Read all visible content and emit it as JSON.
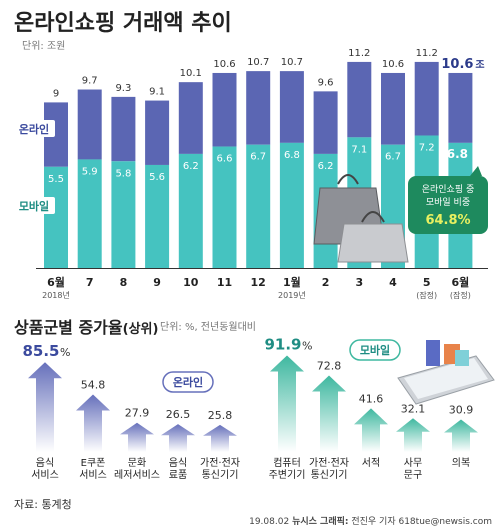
{
  "title": "온라인쇼핑 거래액 추이",
  "unit_top": "단위: 조원",
  "top_chart_data": {
    "type": "bar",
    "stacked": true,
    "months": [
      "6월",
      "7",
      "8",
      "9",
      "10",
      "11",
      "12",
      "1월",
      "2",
      "3",
      "4",
      "5",
      "6월"
    ],
    "year_labels": {
      "0": "2018년",
      "7": "2019년"
    },
    "month_notes": {
      "11": "(잠정)",
      "12": "(잠정)"
    },
    "total_labels": [
      "9",
      "9.7",
      "9.3",
      "9.1",
      "10.1",
      "10.6",
      "10.7",
      "10.7",
      "9.6",
      "11.2",
      "10.6",
      "11.2",
      "10.6"
    ],
    "mobile_labels": [
      "5.5",
      "5.9",
      "5.8",
      "5.6",
      "6.2",
      "6.6",
      "6.7",
      "6.8",
      "6.2",
      "7.1",
      "6.7",
      "7.2",
      "6.8"
    ],
    "totals": [
      9.0,
      9.7,
      9.3,
      9.1,
      10.1,
      10.6,
      10.7,
      10.7,
      9.6,
      11.2,
      10.6,
      11.2,
      10.6
    ],
    "mobile": [
      5.5,
      5.9,
      5.8,
      5.6,
      6.2,
      6.6,
      6.7,
      6.8,
      6.2,
      7.1,
      6.7,
      7.2,
      6.8
    ],
    "last_total_unit": "조",
    "last_mobile_unit": "조",
    "series_labels": {
      "online": "온라인",
      "mobile": "모바일"
    },
    "colors": {
      "online": "#5b66b3",
      "mobile": "#45c3c0",
      "tag": "#1e8a5e",
      "highlight": "#e8f060"
    },
    "callout": {
      "line1": "온라인쇼핑 중",
      "line2": "모바일 비중",
      "value": "64.8%"
    }
  },
  "bottom": {
    "title": "상품군별 증가율",
    "title_sub": "(상위)",
    "unit": "단위: %, 전년동월대비",
    "online_tag": "온라인",
    "mobile_tag": "모바일",
    "online": {
      "labels": [
        "85.5",
        "54.8",
        "27.9",
        "26.5",
        "25.8"
      ],
      "values": [
        85.5,
        54.8,
        27.9,
        26.5,
        25.8
      ],
      "categories": [
        [
          "음식",
          "서비스"
        ],
        [
          "E쿠폰",
          "서비스"
        ],
        [
          "문화",
          "레저서비스"
        ],
        [
          "음식",
          "료품"
        ],
        [
          "가전·전자",
          "통신기기"
        ]
      ],
      "first_unit": "%"
    },
    "mobile": {
      "labels": [
        "91.9",
        "72.8",
        "41.6",
        "32.1",
        "30.9"
      ],
      "values": [
        91.9,
        72.8,
        41.6,
        32.1,
        30.9
      ],
      "categories": [
        [
          "컴퓨터",
          "주변기기"
        ],
        [
          "가전·전자",
          "통신기기"
        ],
        [
          "서적"
        ],
        [
          "사무",
          "문구"
        ],
        [
          "의복"
        ]
      ],
      "first_unit": "%"
    },
    "colors": {
      "online": "#6670bb",
      "mobile": "#3fb8a0"
    }
  },
  "source": "자료: 통계청",
  "credit": {
    "date": "19.08.02",
    "agency": "뉴시스 그래픽:",
    "author": "전진우 기자 618tue@newsis.com"
  }
}
